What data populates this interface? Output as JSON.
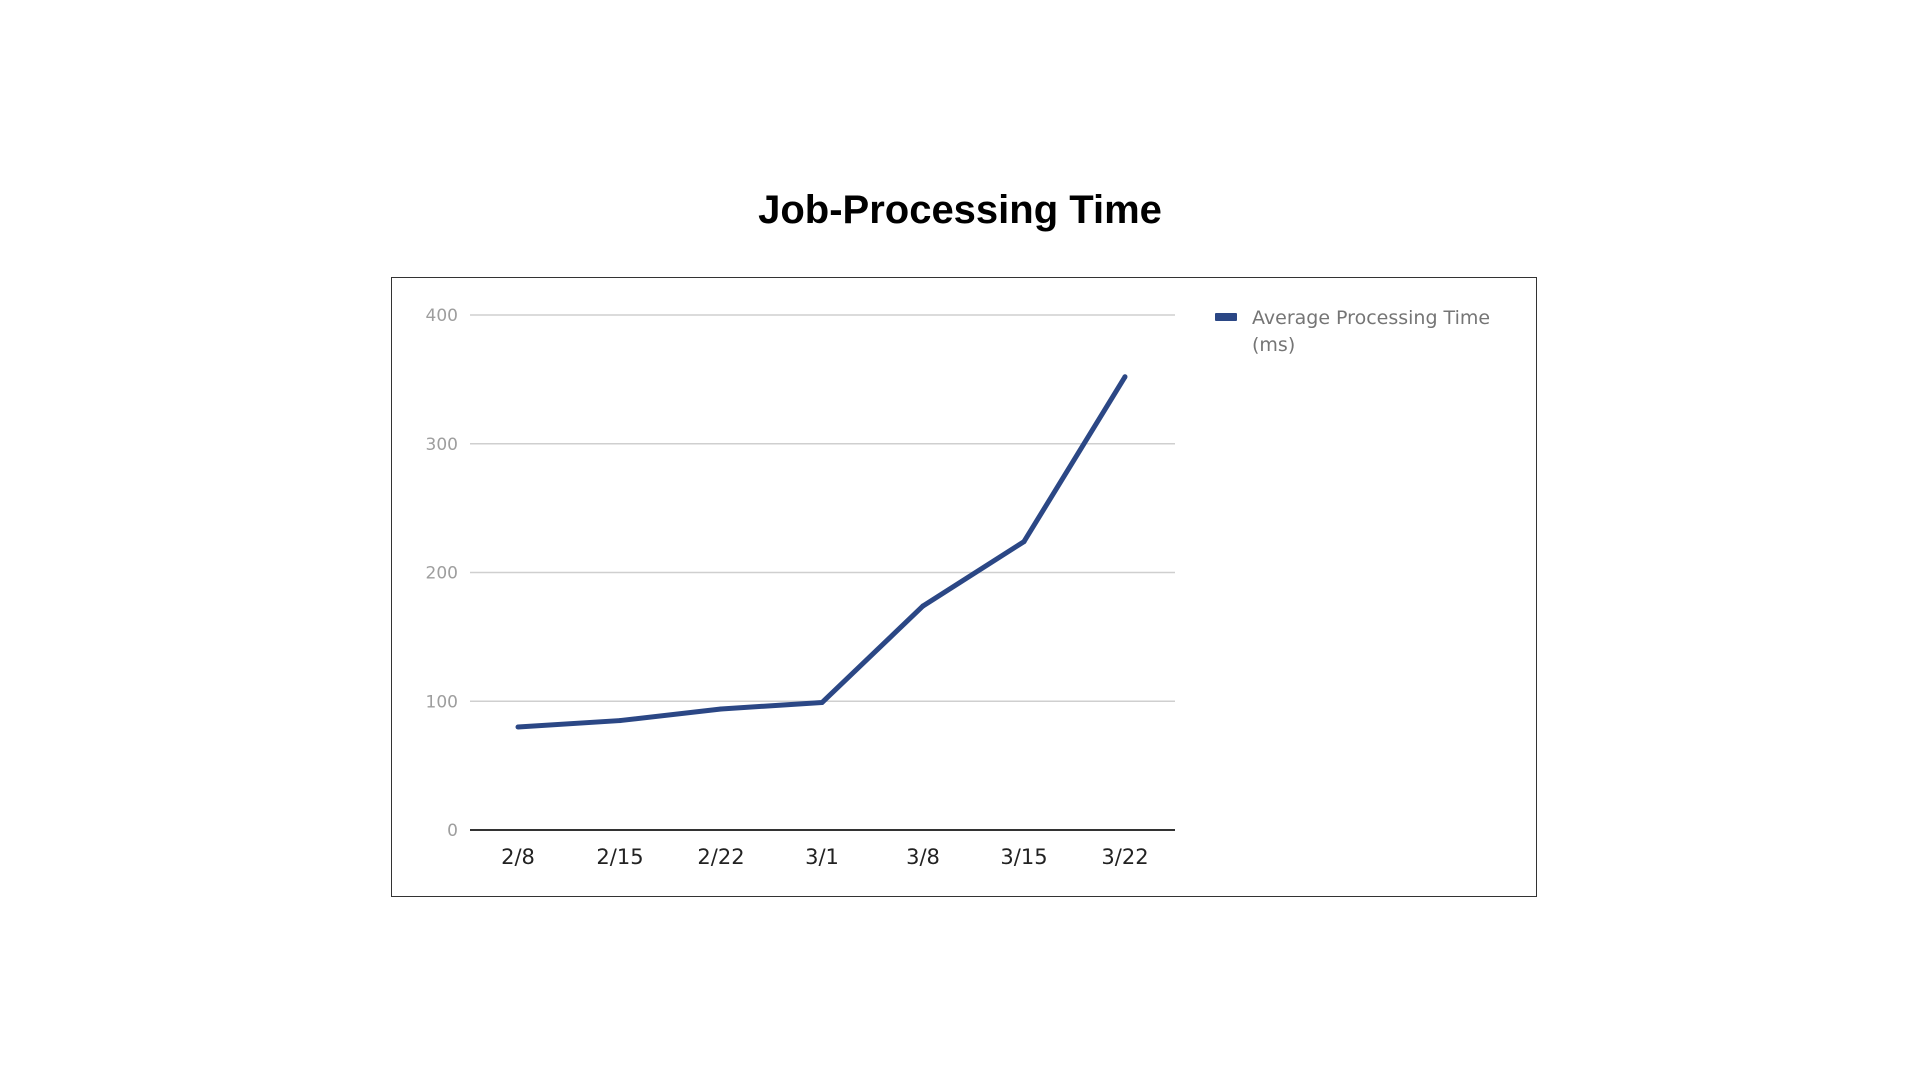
{
  "chart_data": {
    "type": "line",
    "title": "Job-Processing Time",
    "categories": [
      "2/8",
      "2/15",
      "2/22",
      "3/1",
      "3/8",
      "3/15",
      "3/22"
    ],
    "series": [
      {
        "name": "Average Processing Time (ms)",
        "values": [
          80,
          85,
          94,
          99,
          174,
          224,
          352
        ],
        "color": "#2b4785"
      }
    ],
    "yticks": [
      0,
      100,
      200,
      300,
      400
    ],
    "ylim": [
      0,
      400
    ],
    "grid": true,
    "legend_position": "right",
    "legend_lines": [
      "Average Processing Time",
      "(ms)"
    ],
    "xlabel": "",
    "ylabel": ""
  }
}
